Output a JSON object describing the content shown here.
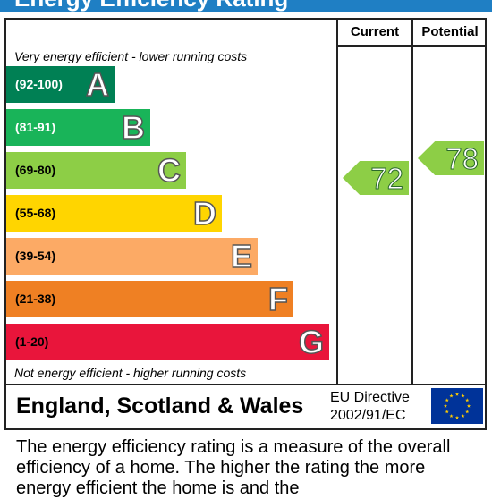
{
  "title": "Energy Efficiency Rating",
  "columns": {
    "current": "Current",
    "potential": "Potential"
  },
  "top_caption": "Very energy efficient - lower running costs",
  "bottom_caption": "Not energy efficient - higher running costs",
  "bands": [
    {
      "range": "(92-100)",
      "letter": "A",
      "color": "#008054",
      "range_color": "#ffffff"
    },
    {
      "range": "(81-91)",
      "letter": "B",
      "color": "#19b459",
      "range_color": "#ffffff"
    },
    {
      "range": "(69-80)",
      "letter": "C",
      "color": "#8dce46",
      "range_color": "#000000"
    },
    {
      "range": "(55-68)",
      "letter": "D",
      "color": "#ffd500",
      "range_color": "#000000"
    },
    {
      "range": "(39-54)",
      "letter": "E",
      "color": "#fcaa65",
      "range_color": "#000000"
    },
    {
      "range": "(21-38)",
      "letter": "F",
      "color": "#ef8023",
      "range_color": "#000000"
    },
    {
      "range": "(1-20)",
      "letter": "G",
      "color": "#e9153b",
      "range_color": "#000000"
    }
  ],
  "current_rating": {
    "value": "72",
    "color": "#8dce46"
  },
  "potential_rating": {
    "value": "78",
    "color": "#8dce46"
  },
  "footer": {
    "region": "England, Scotland & Wales",
    "directive_line1": "EU Directive",
    "directive_line2": "2002/91/EC",
    "flag_icon": "eu-flag-icon"
  },
  "description": "The energy efficiency rating is a measure of the overall efficiency of a home. The higher the rating the more energy efficient the home is and the"
}
